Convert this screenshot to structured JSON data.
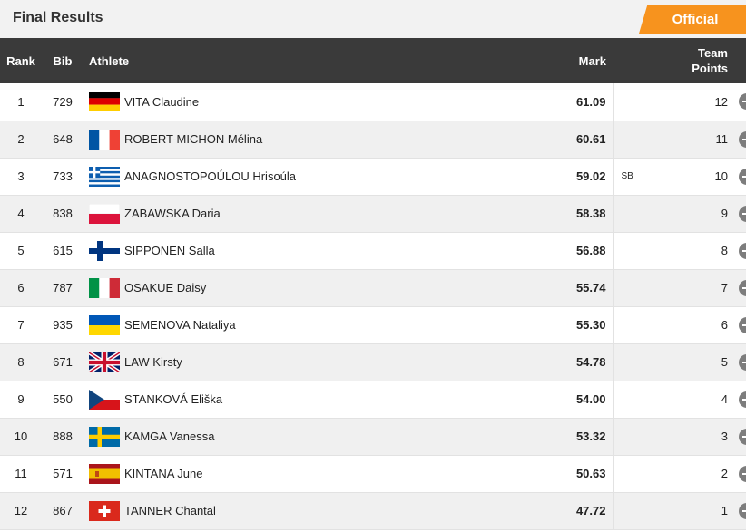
{
  "header": {
    "title": "Final Results",
    "status_badge": "Official"
  },
  "columns": {
    "rank": "Rank",
    "bib": "Bib",
    "athlete": "Athlete",
    "mark": "Mark",
    "points_line1": "Team",
    "points_line2": "Points"
  },
  "rows": [
    {
      "rank": "1",
      "bib": "729",
      "flag": "flag-germany-icon",
      "athlete": "VITA Claudine",
      "mark": "61.09",
      "note": "",
      "points": "12"
    },
    {
      "rank": "2",
      "bib": "648",
      "flag": "flag-france-icon",
      "athlete": "ROBERT-MICHON Mélina",
      "mark": "60.61",
      "note": "",
      "points": "11"
    },
    {
      "rank": "3",
      "bib": "733",
      "flag": "flag-greece-icon",
      "athlete": "ANAGNOSTOPOÚLOU Hrisoúla",
      "mark": "59.02",
      "note": "SB",
      "points": "10"
    },
    {
      "rank": "4",
      "bib": "838",
      "flag": "flag-poland-icon",
      "athlete": "ZABAWSKA Daria",
      "mark": "58.38",
      "note": "",
      "points": "9"
    },
    {
      "rank": "5",
      "bib": "615",
      "flag": "flag-finland-icon",
      "athlete": "SIPPONEN Salla",
      "mark": "56.88",
      "note": "",
      "points": "8"
    },
    {
      "rank": "6",
      "bib": "787",
      "flag": "flag-italy-icon",
      "athlete": "OSAKUE Daisy",
      "mark": "55.74",
      "note": "",
      "points": "7"
    },
    {
      "rank": "7",
      "bib": "935",
      "flag": "flag-ukraine-icon",
      "athlete": "SEMENOVA Nataliya",
      "mark": "55.30",
      "note": "",
      "points": "6"
    },
    {
      "rank": "8",
      "bib": "671",
      "flag": "flag-great-britain-icon",
      "athlete": "LAW Kirsty",
      "mark": "54.78",
      "note": "",
      "points": "5"
    },
    {
      "rank": "9",
      "bib": "550",
      "flag": "flag-czech-republic-icon",
      "athlete": "STANKOVÁ Eliška",
      "mark": "54.00",
      "note": "",
      "points": "4"
    },
    {
      "rank": "10",
      "bib": "888",
      "flag": "flag-sweden-icon",
      "athlete": "KAMGA Vanessa",
      "mark": "53.32",
      "note": "",
      "points": "3"
    },
    {
      "rank": "11",
      "bib": "571",
      "flag": "flag-spain-icon",
      "athlete": "KINTANA June",
      "mark": "50.63",
      "note": "",
      "points": "2"
    },
    {
      "rank": "12",
      "bib": "867",
      "flag": "flag-switzerland-icon",
      "athlete": "TANNER Chantal",
      "mark": "47.72",
      "note": "",
      "points": "1"
    }
  ],
  "colors": {
    "header_bg": "#3a3a3a",
    "accent": "#f7931e",
    "topbar_bg": "#f2f2f2"
  }
}
